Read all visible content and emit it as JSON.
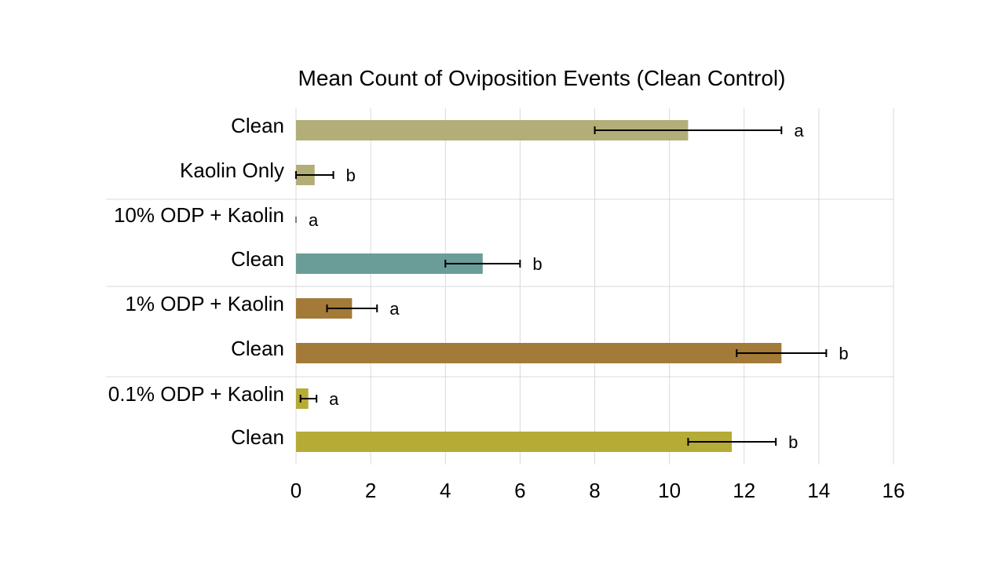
{
  "chart_data": {
    "type": "bar",
    "orientation": "horizontal",
    "title": "Mean Count of Oviposition Events (Clean Control)",
    "xlabel": "",
    "ylabel": "",
    "xlim": [
      0,
      16
    ],
    "xticks": [
      0,
      2,
      4,
      6,
      8,
      10,
      12,
      14,
      16
    ],
    "grid": true,
    "categories": [
      "Clean",
      "Kaolin Only",
      "10% ODP + Kaolin",
      "Clean",
      "1% ODP + Kaolin",
      "Clean",
      "0.1% ODP + Kaolin",
      "Clean"
    ],
    "values": [
      10.5,
      0.5,
      0.0,
      5.0,
      1.5,
      13.0,
      0.33,
      11.67
    ],
    "error_low": [
      8.0,
      0.0,
      0.0,
      4.0,
      0.83,
      11.8,
      0.12,
      10.5
    ],
    "error_high": [
      13.0,
      1.0,
      0.0,
      6.0,
      2.17,
      14.2,
      0.55,
      12.85
    ],
    "significance": [
      "a",
      "b",
      "a",
      "b",
      "a",
      "b",
      "a",
      "b"
    ],
    "colors": [
      "#b3ae78",
      "#b3ae78",
      "#6a9d98",
      "#6a9d98",
      "#a37a37",
      "#a37a37",
      "#b5ab37",
      "#b5ab37"
    ]
  }
}
